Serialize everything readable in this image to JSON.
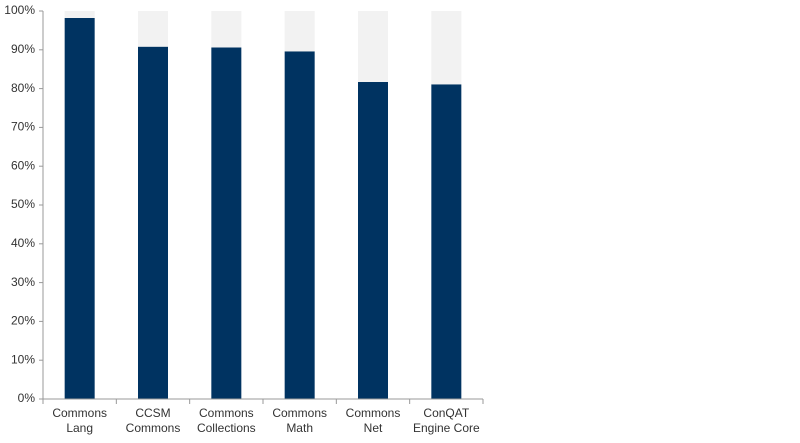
{
  "chart_data": {
    "type": "stacked-bar",
    "categories": [
      [
        "Commons",
        "Lang"
      ],
      [
        "CCSM",
        "Commons"
      ],
      [
        "Commons",
        "Collections"
      ],
      [
        "Commons",
        "Math"
      ],
      [
        "Commons",
        "Net"
      ],
      [
        "ConQAT",
        "Engine Core"
      ]
    ],
    "series": [
      {
        "color": "#003361",
        "values": [
          98.2,
          90.8,
          90.6,
          89.6,
          81.7,
          81.1
        ]
      },
      {
        "color": "#f2f2f2",
        "values": [
          1.8,
          9.2,
          9.4,
          10.4,
          18.3,
          18.9
        ]
      }
    ],
    "ylim": [
      0,
      100
    ],
    "yticks": [
      {
        "value": 0,
        "label": "0%"
      },
      {
        "value": 10,
        "label": "10%"
      },
      {
        "value": 20,
        "label": "20%"
      },
      {
        "value": 30,
        "label": "30%"
      },
      {
        "value": 40,
        "label": "40%"
      },
      {
        "value": 50,
        "label": "50%"
      },
      {
        "value": 60,
        "label": "60%"
      },
      {
        "value": 70,
        "label": "70%"
      },
      {
        "value": 80,
        "label": "80%"
      },
      {
        "value": 90,
        "label": "90%"
      },
      {
        "value": 100,
        "label": "100%"
      }
    ],
    "grid": false
  }
}
